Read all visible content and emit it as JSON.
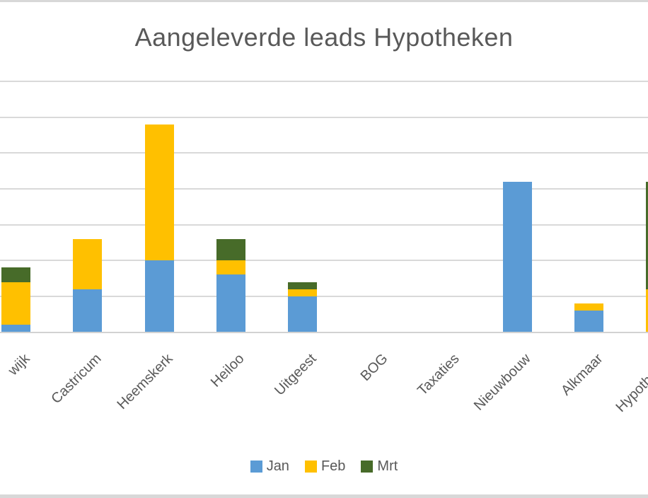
{
  "frame": {
    "background": "#ffffff",
    "top_strip_color": "#d8d8d8",
    "bottom_strip_color": "#d8d8d8"
  },
  "text_color": "#595959",
  "gridline_color": "#d9d9d9",
  "axis_line_color": "#d2d2d2",
  "chart_data": {
    "type": "bar",
    "stacked": true,
    "title": "Aangeleverde leads Hypotheken",
    "categories": [
      "wijk",
      "Castricum",
      "Heemskerk",
      "Heiloo",
      "Uitgeest",
      "BOG",
      "Taxaties",
      "Nieuwbouw",
      "Alkmaar",
      "Hypotheken"
    ],
    "series": [
      {
        "name": "Jan",
        "color": "#5b9bd5",
        "values": [
          1,
          6,
          10,
          8,
          5,
          0,
          0,
          21,
          3,
          0
        ]
      },
      {
        "name": "Feb",
        "color": "#ffc000",
        "values": [
          6,
          7,
          19,
          2,
          1,
          0,
          0,
          0,
          1,
          6
        ]
      },
      {
        "name": "Mrt",
        "color": "#476b29",
        "values": [
          2,
          0,
          0,
          3,
          1,
          0,
          0,
          0,
          0,
          15
        ]
      }
    ],
    "xlabel": "",
    "ylabel": "",
    "ylim": [
      0,
      35
    ],
    "gridline_step": 5,
    "grid": true,
    "y_axis_labels_visible": false,
    "x_label_rotation": -45,
    "legend_position": "bottom",
    "legend": [
      "Jan",
      "Feb",
      "Mrt"
    ],
    "notes": "chart cropped at left and right edges; first and last category labels partially clipped"
  }
}
